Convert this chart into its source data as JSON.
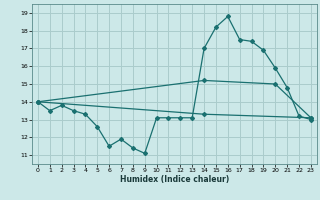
{
  "title": "",
  "xlabel": "Humidex (Indice chaleur)",
  "bg_color": "#cce8e8",
  "grid_color": "#aacccc",
  "line_color": "#1a7070",
  "xlim": [
    -0.5,
    23.5
  ],
  "ylim": [
    10.5,
    19.5
  ],
  "xticks": [
    0,
    1,
    2,
    3,
    4,
    5,
    6,
    7,
    8,
    9,
    10,
    11,
    12,
    13,
    14,
    15,
    16,
    17,
    18,
    19,
    20,
    21,
    22,
    23
  ],
  "yticks": [
    11,
    12,
    13,
    14,
    15,
    16,
    17,
    18,
    19
  ],
  "line1_x": [
    0,
    1,
    2,
    3,
    4,
    5,
    6,
    7,
    8,
    9,
    10,
    11,
    12,
    13,
    14,
    15,
    16,
    17,
    18,
    19,
    20,
    21,
    22,
    23
  ],
  "line1_y": [
    14.0,
    13.5,
    13.8,
    13.5,
    13.3,
    12.6,
    11.5,
    11.9,
    11.4,
    11.1,
    13.1,
    13.1,
    13.1,
    13.1,
    17.0,
    18.2,
    18.8,
    17.5,
    17.4,
    16.9,
    15.9,
    14.8,
    13.2,
    13.0
  ],
  "line2_x": [
    0,
    14,
    20,
    23
  ],
  "line2_y": [
    14.0,
    15.2,
    15.0,
    13.1
  ],
  "line3_x": [
    0,
    14,
    23
  ],
  "line3_y": [
    14.0,
    13.3,
    13.1
  ]
}
